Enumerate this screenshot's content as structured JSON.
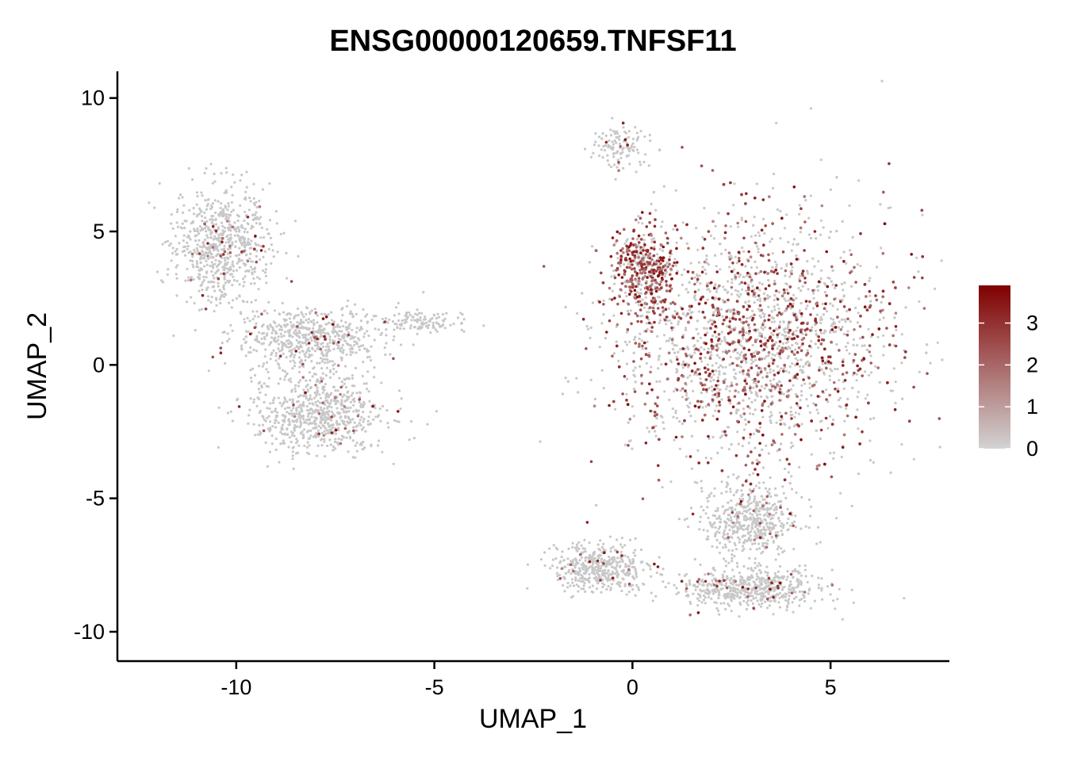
{
  "chart_data": {
    "type": "scatter",
    "title": "ENSG00000120659.TNFSF11",
    "xlabel": "UMAP_1",
    "ylabel": "UMAP_2",
    "xlim": [
      -13,
      8
    ],
    "ylim": [
      -11.1,
      11
    ],
    "x_ticks": [
      -10,
      -5,
      0,
      5
    ],
    "y_ticks": [
      10,
      5,
      0,
      -5,
      -10
    ],
    "grid": false,
    "legend_position": "right",
    "colorbar": {
      "min": 0,
      "max": 3.9,
      "ticks": [
        3,
        2,
        1,
        0
      ],
      "low_color": "#d3d3d3",
      "high_color": "#800000"
    },
    "clusters": [
      {
        "name": "left-upper-arm",
        "center": [
          -10.4,
          4.5
        ],
        "spread": [
          0.8,
          1.5
        ],
        "expression": "low"
      },
      {
        "name": "left-middle",
        "center": [
          -8.2,
          1.0
        ],
        "spread": [
          1.2,
          0.8
        ],
        "expression": "low"
      },
      {
        "name": "left-lower-blob",
        "center": [
          -7.9,
          -1.8
        ],
        "spread": [
          1.1,
          1.0
        ],
        "expression": "low"
      },
      {
        "name": "left-tail",
        "center": [
          -5.3,
          1.6
        ],
        "spread": [
          0.8,
          0.3
        ],
        "expression": "none"
      },
      {
        "name": "right-main-body",
        "center": [
          3.0,
          1.0
        ],
        "spread": [
          2.3,
          3.0
        ],
        "expression": "high"
      },
      {
        "name": "right-left-edge",
        "center": [
          0.3,
          3.5
        ],
        "spread": [
          0.5,
          1.2
        ],
        "expression": "very-high"
      },
      {
        "name": "right-top-spur",
        "center": [
          -0.3,
          8.2
        ],
        "spread": [
          0.5,
          0.5
        ],
        "expression": "low"
      },
      {
        "name": "right-neck",
        "center": [
          3.0,
          -5.8
        ],
        "spread": [
          0.8,
          0.9
        ],
        "expression": "low"
      },
      {
        "name": "right-bottom-left-lobe",
        "center": [
          -0.8,
          -7.6
        ],
        "spread": [
          0.8,
          0.6
        ],
        "expression": "low"
      },
      {
        "name": "right-bottom-right-lobe",
        "center": [
          3.0,
          -8.4
        ],
        "spread": [
          1.2,
          0.5
        ],
        "expression": "low"
      }
    ]
  }
}
